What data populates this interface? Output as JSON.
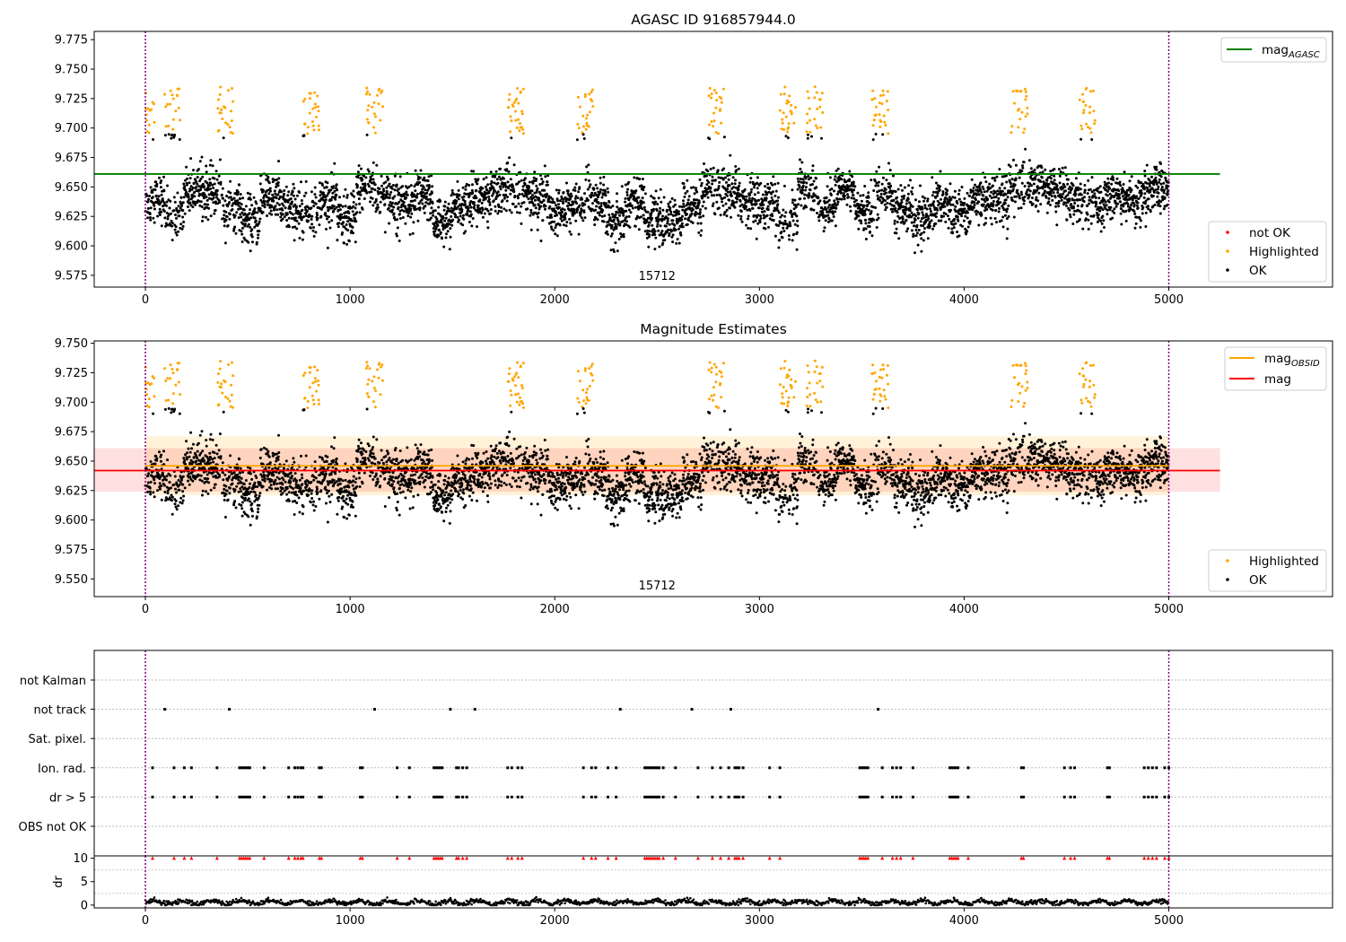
{
  "chart_data": [
    {
      "type": "scatter",
      "title": "AGASC ID 916857944.0",
      "xlim": [
        -250,
        5800
      ],
      "ylim": [
        9.565,
        9.782
      ],
      "x_ticks": [
        0,
        1000,
        2000,
        3000,
        4000,
        5000
      ],
      "y_ticks": [
        9.575,
        9.6,
        9.625,
        9.65,
        9.675,
        9.7,
        9.725,
        9.75,
        9.775
      ],
      "y_tick_labels": [
        "9.575",
        "9.600",
        "9.625",
        "9.650",
        "9.675",
        "9.700",
        "9.725",
        "9.750",
        "9.775"
      ],
      "obsid_label": "15712",
      "obsid_label_x": 2500,
      "obsid_boundaries": [
        0,
        5000
      ],
      "reference_lines": [
        {
          "name": "mag",
          "subscript": "AGASC",
          "y": 9.661,
          "x_range": [
            -250,
            5250
          ],
          "color": "#008000"
        }
      ],
      "legend_top": [
        {
          "name": "mag",
          "subscript": "AGASC",
          "color": "#008000",
          "kind": "line"
        }
      ],
      "legend_bottom": [
        {
          "name": "not OK",
          "color": "#ff0000",
          "kind": "marker"
        },
        {
          "name": "Highlighted",
          "color": "#ffa500",
          "kind": "marker"
        },
        {
          "name": "OK",
          "color": "#000000",
          "kind": "marker"
        }
      ],
      "series": [
        {
          "name": "OK",
          "color": "#000000",
          "estimated_points": 4700,
          "baseline": 9.643,
          "noise": 0.011
        },
        {
          "name": "Highlighted",
          "color": "#ffa500",
          "estimated_points": 300
        },
        {
          "name": "not OK",
          "color": "#ff0000",
          "estimated_points": 0
        }
      ]
    },
    {
      "type": "scatter",
      "title": "Magnitude Estimates",
      "xlim": [
        -250,
        5800
      ],
      "ylim": [
        9.535,
        9.752
      ],
      "x_ticks": [
        0,
        1000,
        2000,
        3000,
        4000,
        5000
      ],
      "y_ticks": [
        9.55,
        9.575,
        9.6,
        9.625,
        9.65,
        9.675,
        9.7,
        9.725,
        9.75
      ],
      "y_tick_labels": [
        "9.550",
        "9.575",
        "9.600",
        "9.625",
        "9.650",
        "9.675",
        "9.700",
        "9.725",
        "9.750"
      ],
      "obsid_label": "15712",
      "obsid_label_x": 2500,
      "obsid_boundaries": [
        0,
        5000
      ],
      "reference_lines": [
        {
          "name": "mag",
          "subscript": "OBSID",
          "y": 9.646,
          "x_range": [
            0,
            5000
          ],
          "color": "#ffa500"
        },
        {
          "name": "mag",
          "subscript": "",
          "y": 9.642,
          "x_range": [
            -250,
            5250
          ],
          "color": "#ff0000"
        }
      ],
      "bands": [
        {
          "y_range": [
            9.621,
            9.671
          ],
          "x_range": [
            0,
            5000
          ],
          "color": "#ffa500",
          "opacity": 0.15
        },
        {
          "y_range": [
            9.624,
            9.661
          ],
          "x_range": [
            -250,
            5250
          ],
          "color": "#ff0000",
          "opacity": 0.12
        }
      ],
      "legend_top": [
        {
          "name": "mag",
          "subscript": "OBSID",
          "color": "#ffa500",
          "kind": "line"
        },
        {
          "name": "mag",
          "subscript": "",
          "color": "#ff0000",
          "kind": "line"
        }
      ],
      "legend_bottom": [
        {
          "name": "Highlighted",
          "color": "#ffa500",
          "kind": "marker"
        },
        {
          "name": "OK",
          "color": "#000000",
          "kind": "marker"
        }
      ]
    },
    {
      "type": "scatter",
      "title": "",
      "xlim": [
        -250,
        5800
      ],
      "categories": [
        "not Kalman",
        "not track",
        "Sat. pixel.",
        "Ion. rad.",
        "dr > 5",
        "OBS not OK"
      ],
      "obsid_boundaries": [
        0,
        5000
      ],
      "flag_events": {
        "not track": [
          95,
          410,
          1120,
          1490,
          1610,
          2320,
          2670,
          2860,
          3580
        ],
        "Ion. rad.": [
          35,
          140,
          190,
          225,
          350,
          460,
          470,
          480,
          490,
          500,
          510,
          580,
          700,
          730,
          745,
          760,
          770,
          850,
          860,
          1050,
          1060,
          1230,
          1290,
          1410,
          1420,
          1430,
          1440,
          1450,
          1520,
          1530,
          1550,
          1570,
          1770,
          1790,
          1820,
          1840,
          2140,
          2180,
          2200,
          2260,
          2300,
          2440,
          2450,
          2460,
          2470,
          2480,
          2490,
          2500,
          2510,
          2530,
          2590,
          2700,
          2770,
          2810,
          2850,
          2880,
          2890,
          2900,
          2920,
          3050,
          3100,
          3490,
          3500,
          3510,
          3520,
          3530,
          3600,
          3650,
          3670,
          3690,
          3750,
          3930,
          3940,
          3950,
          3960,
          3970,
          4020,
          4280,
          4290,
          4490,
          4520,
          4540,
          4700,
          4710,
          4880,
          4900,
          4920,
          4940,
          4980,
          5000
        ],
        "dr > 5": [
          35,
          140,
          190,
          225,
          350,
          460,
          470,
          480,
          490,
          500,
          510,
          580,
          700,
          730,
          745,
          760,
          770,
          850,
          860,
          1050,
          1060,
          1230,
          1290,
          1410,
          1420,
          1430,
          1440,
          1450,
          1520,
          1530,
          1550,
          1570,
          1770,
          1790,
          1820,
          1840,
          2140,
          2180,
          2200,
          2260,
          2300,
          2440,
          2450,
          2460,
          2470,
          2480,
          2490,
          2500,
          2510,
          2530,
          2590,
          2700,
          2770,
          2810,
          2850,
          2880,
          2890,
          2900,
          2920,
          3050,
          3100,
          3490,
          3500,
          3510,
          3520,
          3530,
          3600,
          3650,
          3670,
          3690,
          3750,
          3930,
          3940,
          3950,
          3960,
          3970,
          4020,
          4280,
          4290,
          4490,
          4520,
          4540,
          4700,
          4710,
          4880,
          4900,
          4920,
          4940,
          4980,
          5000
        ]
      }
    },
    {
      "type": "scatter",
      "title": "",
      "ylabel": "dr",
      "xlim": [
        -250,
        5800
      ],
      "ylim": [
        -0.6,
        10.5
      ],
      "x_ticks": [
        0,
        1000,
        2000,
        3000,
        4000,
        5000
      ],
      "y_ticks": [
        0,
        5,
        10
      ],
      "y_tick_labels": [
        "0",
        "5",
        "10"
      ],
      "obsid_boundaries": [
        0,
        5000
      ],
      "dr_mean": 0.6,
      "clipped_points": {
        "y": 10,
        "color": "#ff0000",
        "marker": "triangle",
        "x_same_as": "dr > 5"
      }
    }
  ]
}
